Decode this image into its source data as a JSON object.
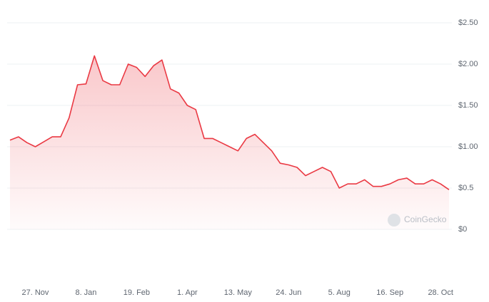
{
  "chart_data": {
    "type": "area",
    "watermark": "CoinGecko",
    "color": "#ea3943",
    "categories": [
      null,
      null,
      null,
      "27. Nov",
      null,
      null,
      null,
      null,
      null,
      "8. Jan",
      null,
      null,
      null,
      null,
      null,
      "19. Feb",
      null,
      null,
      null,
      null,
      null,
      "1. Apr",
      null,
      null,
      null,
      null,
      null,
      "13. May",
      null,
      null,
      null,
      null,
      null,
      "24. Jun",
      null,
      null,
      null,
      null,
      null,
      "5. Aug",
      null,
      null,
      null,
      null,
      null,
      "16. Sep",
      null,
      null,
      null,
      null,
      null,
      "28. Oct",
      null
    ],
    "values": [
      1.08,
      1.12,
      1.05,
      1.0,
      1.06,
      1.12,
      1.12,
      1.35,
      1.75,
      1.76,
      2.1,
      1.8,
      1.75,
      1.75,
      2.0,
      1.96,
      1.85,
      1.98,
      2.05,
      1.7,
      1.65,
      1.5,
      1.45,
      1.1,
      1.1,
      1.05,
      1.0,
      0.95,
      1.1,
      1.15,
      1.05,
      0.95,
      0.8,
      0.78,
      0.75,
      0.65,
      0.7,
      0.75,
      0.7,
      0.5,
      0.55,
      0.55,
      0.6,
      0.52,
      0.52,
      0.55,
      0.6,
      0.62,
      0.55,
      0.55,
      0.6,
      0.55,
      0.48
    ],
    "ylim": [
      0,
      2.5
    ],
    "yticks": [
      {
        "value": 0,
        "label": "$0"
      },
      {
        "value": 0.5,
        "label": "$0.5"
      },
      {
        "value": 1,
        "label": "$1.00"
      },
      {
        "value": 1.5,
        "label": "$1.50"
      },
      {
        "value": 2,
        "label": "$2.00"
      },
      {
        "value": 2.5,
        "label": "$2.50"
      }
    ],
    "grid": true
  }
}
